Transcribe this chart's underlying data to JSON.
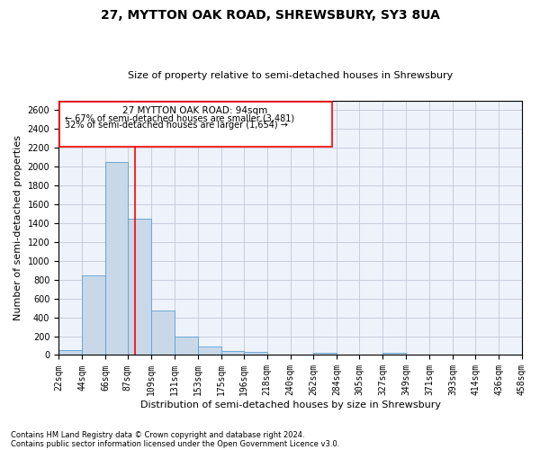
{
  "title": "27, MYTTON OAK ROAD, SHREWSBURY, SY3 8UA",
  "subtitle": "Size of property relative to semi-detached houses in Shrewsbury",
  "xlabel": "Distribution of semi-detached houses by size in Shrewsbury",
  "ylabel": "Number of semi-detached properties",
  "footnote1": "Contains HM Land Registry data © Crown copyright and database right 2024.",
  "footnote2": "Contains public sector information licensed under the Open Government Licence v3.0.",
  "annotation_title": "27 MYTTON OAK ROAD: 94sqm",
  "annotation_line1": "← 67% of semi-detached houses are smaller (3,481)",
  "annotation_line2": "32% of semi-detached houses are larger (1,654) →",
  "property_size": 94,
  "bar_color": "#c8d8e8",
  "bar_edge_color": "#5a9fd4",
  "vline_color": "red",
  "background_color": "#eef2fa",
  "bin_edges": [
    22,
    44,
    66,
    87,
    109,
    131,
    153,
    175,
    196,
    218,
    240,
    262,
    284,
    305,
    327,
    349,
    371,
    393,
    414,
    436,
    458
  ],
  "bar_heights": [
    50,
    850,
    2050,
    1450,
    470,
    200,
    95,
    40,
    30,
    0,
    0,
    20,
    0,
    0,
    25,
    0,
    0,
    0,
    0,
    0
  ],
  "ylim": [
    0,
    2700
  ],
  "yticks": [
    0,
    200,
    400,
    600,
    800,
    1000,
    1200,
    1400,
    1600,
    1800,
    2000,
    2200,
    2400,
    2600
  ],
  "grid_color": "#c0c8d8",
  "title_fontsize": 10,
  "subtitle_fontsize": 8,
  "axis_label_fontsize": 8,
  "tick_fontsize": 7,
  "annotation_fontsize": 7,
  "footnote_fontsize": 6
}
